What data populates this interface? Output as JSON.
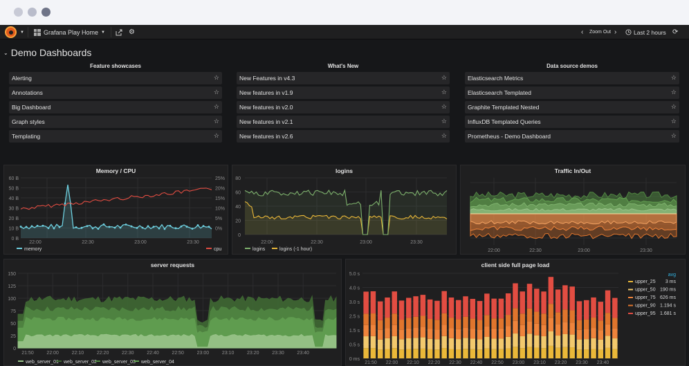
{
  "navbar": {
    "dashboard_title": "Grafana Play Home",
    "zoom_out_label": "Zoom Out",
    "time_range": "Last 2 hours"
  },
  "row": {
    "title": "Demo Dashboards"
  },
  "dashlists": [
    {
      "title": "Feature showcases",
      "items": [
        "Alerting",
        "Annotations",
        "Big Dashboard",
        "Graph styles",
        "Templating"
      ]
    },
    {
      "title": "What's New",
      "items": [
        "New Features in v4.3",
        "New features in v1.9",
        "New features in v2.0",
        "New features in v2.1",
        "New features in v2.6"
      ]
    },
    {
      "title": "Data source demos",
      "items": [
        "Elasticsearch Metrics",
        "Elasticsearch Templated",
        "Graphite Templated Nested",
        "InfluxDB Templated Queries",
        "Prometheus - Demo Dashboard"
      ]
    }
  ],
  "panels": {
    "memory_cpu": {
      "title": "Memory / CPU",
      "y_left_ticks": [
        "60 B",
        "50 B",
        "40 B",
        "30 B",
        "20 B",
        "10 B",
        "0 B"
      ],
      "y_right_ticks": [
        "25%",
        "20%",
        "15%",
        "10%",
        "5%",
        "0%"
      ],
      "x_ticks": [
        "22:00",
        "22:30",
        "23:00",
        "23:30"
      ],
      "legend_left": "memory",
      "legend_right": "cpu"
    },
    "logins": {
      "title": "logins",
      "y_ticks": [
        "80",
        "60",
        "40",
        "20",
        "0"
      ],
      "x_ticks": [
        "22:00",
        "22:30",
        "23:00",
        "23:30"
      ],
      "legend": [
        "logins",
        "logins (-1 hour)"
      ]
    },
    "traffic": {
      "title": "Traffic In/Out",
      "x_ticks": [
        "22:00",
        "22:30",
        "23:00",
        "23:30"
      ]
    },
    "server_requests": {
      "title": "server requests",
      "y_ticks": [
        "150",
        "125",
        "100",
        "75",
        "50",
        "25",
        "0"
      ],
      "x_ticks": [
        "21:50",
        "22:00",
        "22:10",
        "22:20",
        "22:30",
        "22:40",
        "22:50",
        "23:00",
        "23:10",
        "23:20",
        "23:30",
        "23:40"
      ],
      "legend": [
        "web_server_01",
        "web_server_02",
        "web_server_03",
        "web_server_04"
      ]
    },
    "page_load": {
      "title": "client side full page load",
      "y_ticks": [
        "5.0 s",
        "4.0 s",
        "3.0 s",
        "2.5 s",
        "1.5 s",
        "0.5 s",
        "0 ms"
      ],
      "x_ticks": [
        "21:50",
        "22:00",
        "22:10",
        "22:20",
        "22:30",
        "22:40",
        "22:50",
        "23:00",
        "23:10",
        "23:20",
        "23:30",
        "23:40"
      ],
      "legend_header": "avg",
      "legend": [
        {
          "name": "upper_25",
          "value": "3 ms",
          "color": "#eab839"
        },
        {
          "name": "upper_50",
          "value": "190 ms",
          "color": "#f2c96d"
        },
        {
          "name": "upper_75",
          "value": "626 ms",
          "color": "#ef843c"
        },
        {
          "name": "upper_90",
          "value": "1.194 s",
          "color": "#e0752d"
        },
        {
          "name": "upper_95",
          "value": "1.681 s",
          "color": "#e24d42"
        }
      ]
    }
  },
  "colors": {
    "background": "#161719",
    "panel": "#1f1f20",
    "memory": "#6ed0e0",
    "cpu": "#e24d42",
    "logins": "#7eb26d",
    "logins_prev": "#eab839",
    "traffic_in": "#629e51",
    "traffic_out": "#ef843c"
  }
}
